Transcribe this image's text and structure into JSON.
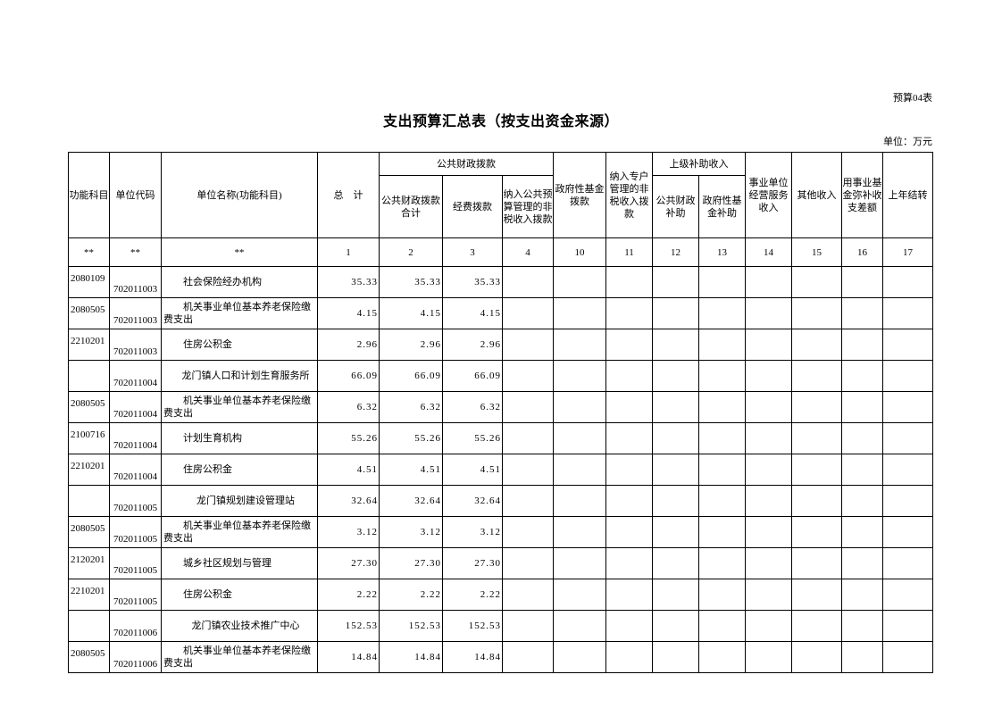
{
  "form_no": "预算04表",
  "title": "支出预算汇总表（按支出资金来源）",
  "unit": "单位：万元",
  "headers": {
    "func": "功能科目",
    "code": "单位代码",
    "name": "单位名称(功能科目)",
    "total": "总　计",
    "public_group": "公共财政拨款",
    "public_total": "公共财政拨款合计",
    "funding": "经费拨款",
    "nontax_public": "纳入公共预算管理的非税收入拨款",
    "gov_fund": "政府性基金拨款",
    "nontax_special": "纳入专户管理的非税收入拨款",
    "upper_group": "上级补助收入",
    "upper_public": "公共财政补助",
    "upper_gov": "政府性基金补助",
    "business": "事业单位经营服务收入",
    "other": "其他收入",
    "fund_make_up": "用事业基金弥补收支差额",
    "carryover": "上年结转"
  },
  "index_row": [
    "**",
    "**",
    "**",
    "1",
    "2",
    "3",
    "4",
    "10",
    "11",
    "12",
    "13",
    "14",
    "15",
    "16",
    "17"
  ],
  "rows": [
    {
      "func": "2080109",
      "code": "702011003",
      "name": "社会保险经办机构",
      "sub": true,
      "total": "35.33",
      "public_total": "35.33",
      "funding": "35.33"
    },
    {
      "func": "2080505",
      "code": "702011003",
      "name": "机关事业单位基本养老保险缴费支出",
      "sub": true,
      "total": "4.15",
      "public_total": "4.15",
      "funding": "4.15"
    },
    {
      "func": "2210201",
      "code": "702011003",
      "name": "住房公积金",
      "sub": true,
      "total": "2.96",
      "public_total": "2.96",
      "funding": "2.96"
    },
    {
      "func": "",
      "code": "702011004",
      "name": "龙门镇人口和计划生育服务所",
      "sub": false,
      "total": "66.09",
      "public_total": "66.09",
      "funding": "66.09"
    },
    {
      "func": "2080505",
      "code": "702011004",
      "name": "机关事业单位基本养老保险缴费支出",
      "sub": true,
      "total": "6.32",
      "public_total": "6.32",
      "funding": "6.32"
    },
    {
      "func": "2100716",
      "code": "702011004",
      "name": "计划生育机构",
      "sub": true,
      "total": "55.26",
      "public_total": "55.26",
      "funding": "55.26"
    },
    {
      "func": "2210201",
      "code": "702011004",
      "name": "住房公积金",
      "sub": true,
      "total": "4.51",
      "public_total": "4.51",
      "funding": "4.51"
    },
    {
      "func": "",
      "code": "702011005",
      "name": "龙门镇规划建设管理站",
      "sub": false,
      "total": "32.64",
      "public_total": "32.64",
      "funding": "32.64"
    },
    {
      "func": "2080505",
      "code": "702011005",
      "name": "机关事业单位基本养老保险缴费支出",
      "sub": true,
      "total": "3.12",
      "public_total": "3.12",
      "funding": "3.12"
    },
    {
      "func": "2120201",
      "code": "702011005",
      "name": "城乡社区规划与管理",
      "sub": true,
      "total": "27.30",
      "public_total": "27.30",
      "funding": "27.30"
    },
    {
      "func": "2210201",
      "code": "702011005",
      "name": "住房公积金",
      "sub": true,
      "total": "2.22",
      "public_total": "2.22",
      "funding": "2.22"
    },
    {
      "func": "",
      "code": "702011006",
      "name": "龙门镇农业技术推广中心",
      "sub": false,
      "total": "152.53",
      "public_total": "152.53",
      "funding": "152.53"
    },
    {
      "func": "2080505",
      "code": "702011006",
      "name": "机关事业单位基本养老保险缴费支出",
      "sub": true,
      "total": "14.84",
      "public_total": "14.84",
      "funding": "14.84"
    }
  ]
}
